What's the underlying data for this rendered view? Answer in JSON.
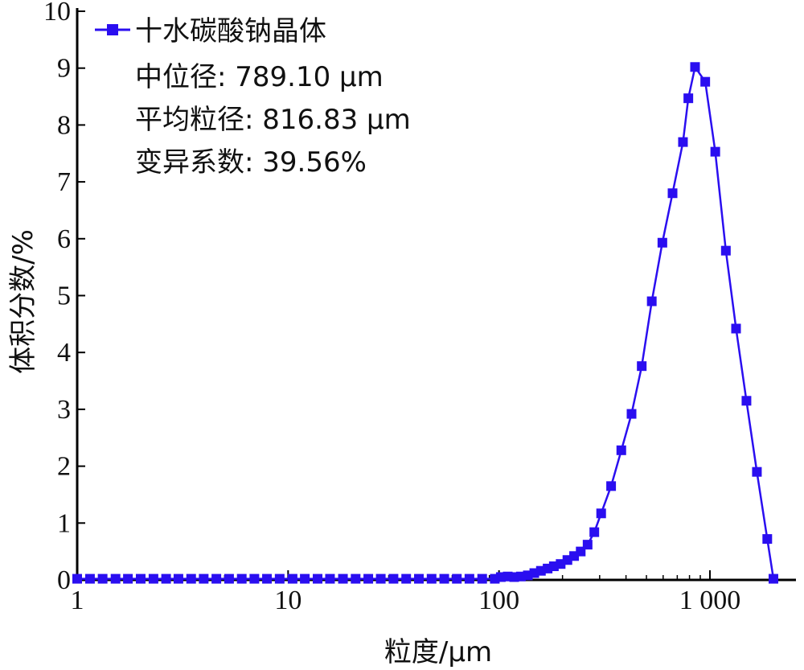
{
  "chart_data": {
    "type": "line",
    "xlabel": "粒度/μm",
    "ylabel": "体积分数/%",
    "x_scale": "log",
    "xlim": [
      1,
      2500
    ],
    "ylim": [
      0,
      10
    ],
    "x_ticks": [
      {
        "value": 1,
        "label": "1"
      },
      {
        "value": 10,
        "label": "10"
      },
      {
        "value": 100,
        "label": "100"
      },
      {
        "value": 1000,
        "label": "1 000"
      }
    ],
    "y_ticks": [
      {
        "value": 0,
        "label": "0"
      },
      {
        "value": 1,
        "label": "1"
      },
      {
        "value": 2,
        "label": "2"
      },
      {
        "value": 3,
        "label": "3"
      },
      {
        "value": 4,
        "label": "4"
      },
      {
        "value": 5,
        "label": "5"
      },
      {
        "value": 6,
        "label": "6"
      },
      {
        "value": 7,
        "label": "7"
      },
      {
        "value": 8,
        "label": "8"
      },
      {
        "value": 9,
        "label": "9"
      },
      {
        "value": 10,
        "label": "10"
      }
    ],
    "grid": false,
    "legend_position": "top-left",
    "series": [
      {
        "name": "十水碳酸钠晶体",
        "color": "#2a0ef0",
        "marker": "square",
        "x": [
          1,
          1.15,
          1.32,
          1.52,
          1.74,
          2,
          2.3,
          2.64,
          3.02,
          3.47,
          3.98,
          4.57,
          5.25,
          6.03,
          6.92,
          7.94,
          9.12,
          10.5,
          12,
          13.8,
          15.8,
          18.2,
          20.9,
          24,
          27.5,
          31.6,
          36.3,
          41.7,
          47.9,
          55,
          63.1,
          72.4,
          83.2,
          95.5,
          102,
          110,
          118,
          127,
          137,
          147,
          158,
          170,
          182,
          196,
          211,
          227,
          244,
          263,
          283,
          305,
          340,
          380,
          425,
          475,
          530,
          595,
          665,
          745,
          790,
          850,
          950,
          1060,
          1190,
          1330,
          1490,
          1670,
          1870,
          2000
        ],
        "values": [
          0.02,
          0.02,
          0.02,
          0.02,
          0.02,
          0.02,
          0.02,
          0.02,
          0.02,
          0.02,
          0.02,
          0.02,
          0.02,
          0.02,
          0.02,
          0.02,
          0.02,
          0.02,
          0.02,
          0.02,
          0.02,
          0.02,
          0.02,
          0.02,
          0.02,
          0.02,
          0.02,
          0.02,
          0.02,
          0.02,
          0.02,
          0.02,
          0.02,
          0.02,
          0.05,
          0.06,
          0.05,
          0.06,
          0.08,
          0.12,
          0.16,
          0.2,
          0.24,
          0.28,
          0.35,
          0.42,
          0.5,
          0.62,
          0.84,
          1.17,
          1.65,
          2.28,
          2.92,
          3.76,
          4.9,
          5.93,
          6.8,
          7.7,
          8.47,
          9.02,
          8.76,
          7.53,
          5.79,
          4.42,
          3.15,
          1.9,
          0.72,
          0.02
        ]
      }
    ],
    "annotations": [
      "中位径: 789.10 μm",
      "平均粒径: 816.83 μm",
      "变异系数: 39.56%"
    ]
  }
}
